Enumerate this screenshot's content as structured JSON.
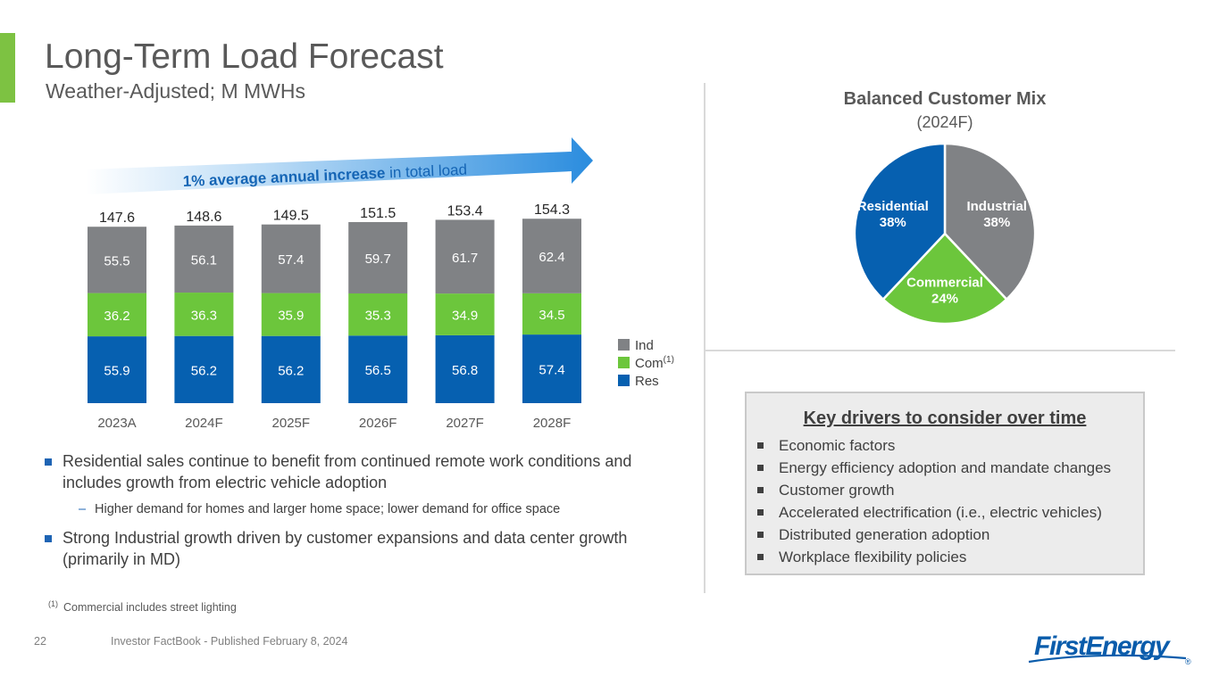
{
  "header": {
    "title": "Long-Term Load Forecast",
    "subtitle": "Weather-Adjusted; M MWHs"
  },
  "arrow_banner": {
    "bold_text": "1% average annual increase",
    "rest_text": " in total load"
  },
  "colors": {
    "residential": "#0660b0",
    "commercial": "#6cc63c",
    "industrial": "#808285",
    "accent_green": "#7dc242",
    "arrow_blue": "#2a8cde"
  },
  "chart_data": [
    {
      "type": "bar",
      "stacked": true,
      "title": "",
      "categories": [
        "2023A",
        "2024F",
        "2025F",
        "2026F",
        "2027F",
        "2028F"
      ],
      "series": [
        {
          "name": "Res",
          "values": [
            55.9,
            56.2,
            56.2,
            56.5,
            56.8,
            57.4
          ]
        },
        {
          "name": "Com",
          "superscript": "(1)",
          "values": [
            36.2,
            36.3,
            35.9,
            35.3,
            34.9,
            34.5
          ]
        },
        {
          "name": "Ind",
          "values": [
            55.5,
            56.1,
            57.4,
            59.7,
            61.7,
            62.4
          ]
        }
      ],
      "totals": [
        147.6,
        148.6,
        149.5,
        151.5,
        153.4,
        154.3
      ],
      "legend": {
        "position": "right",
        "order": [
          "Ind",
          "Com",
          "Res"
        ]
      },
      "ylim": [
        0,
        160
      ],
      "grid": false
    },
    {
      "type": "pie",
      "title": "Balanced Customer Mix",
      "subtitle": "(2024F)",
      "slices": [
        {
          "label": "Industrial",
          "value": 38,
          "display": "38%"
        },
        {
          "label": "Commercial",
          "value": 24,
          "display": "24%"
        },
        {
          "label": "Residential",
          "value": 38,
          "display": "38%"
        }
      ]
    }
  ],
  "bullets": {
    "items": [
      {
        "text": "Residential sales continue to benefit from continued remote work conditions and includes growth from electric vehicle adoption"
      },
      {
        "text": "Strong Industrial growth driven by customer expansions and data center growth (primarily in MD)"
      }
    ],
    "sub_items": [
      {
        "text": "Higher demand for homes and larger home space; lower demand for office space"
      }
    ]
  },
  "drivers": {
    "title": "Key drivers to consider over time",
    "items": [
      "Economic factors",
      "Energy efficiency adoption and mandate changes",
      "Customer growth",
      "Accelerated electrification (i.e., electric vehicles)",
      "Distributed generation adoption",
      "Workplace flexibility policies"
    ]
  },
  "footnote": {
    "marker": "(1)",
    "text": "Commercial includes street lighting"
  },
  "footer": {
    "page_number": "22",
    "text": "Investor FactBook - Published February 8, 2024"
  },
  "logo": {
    "text": "FirstEnergy",
    "mark": "®"
  }
}
